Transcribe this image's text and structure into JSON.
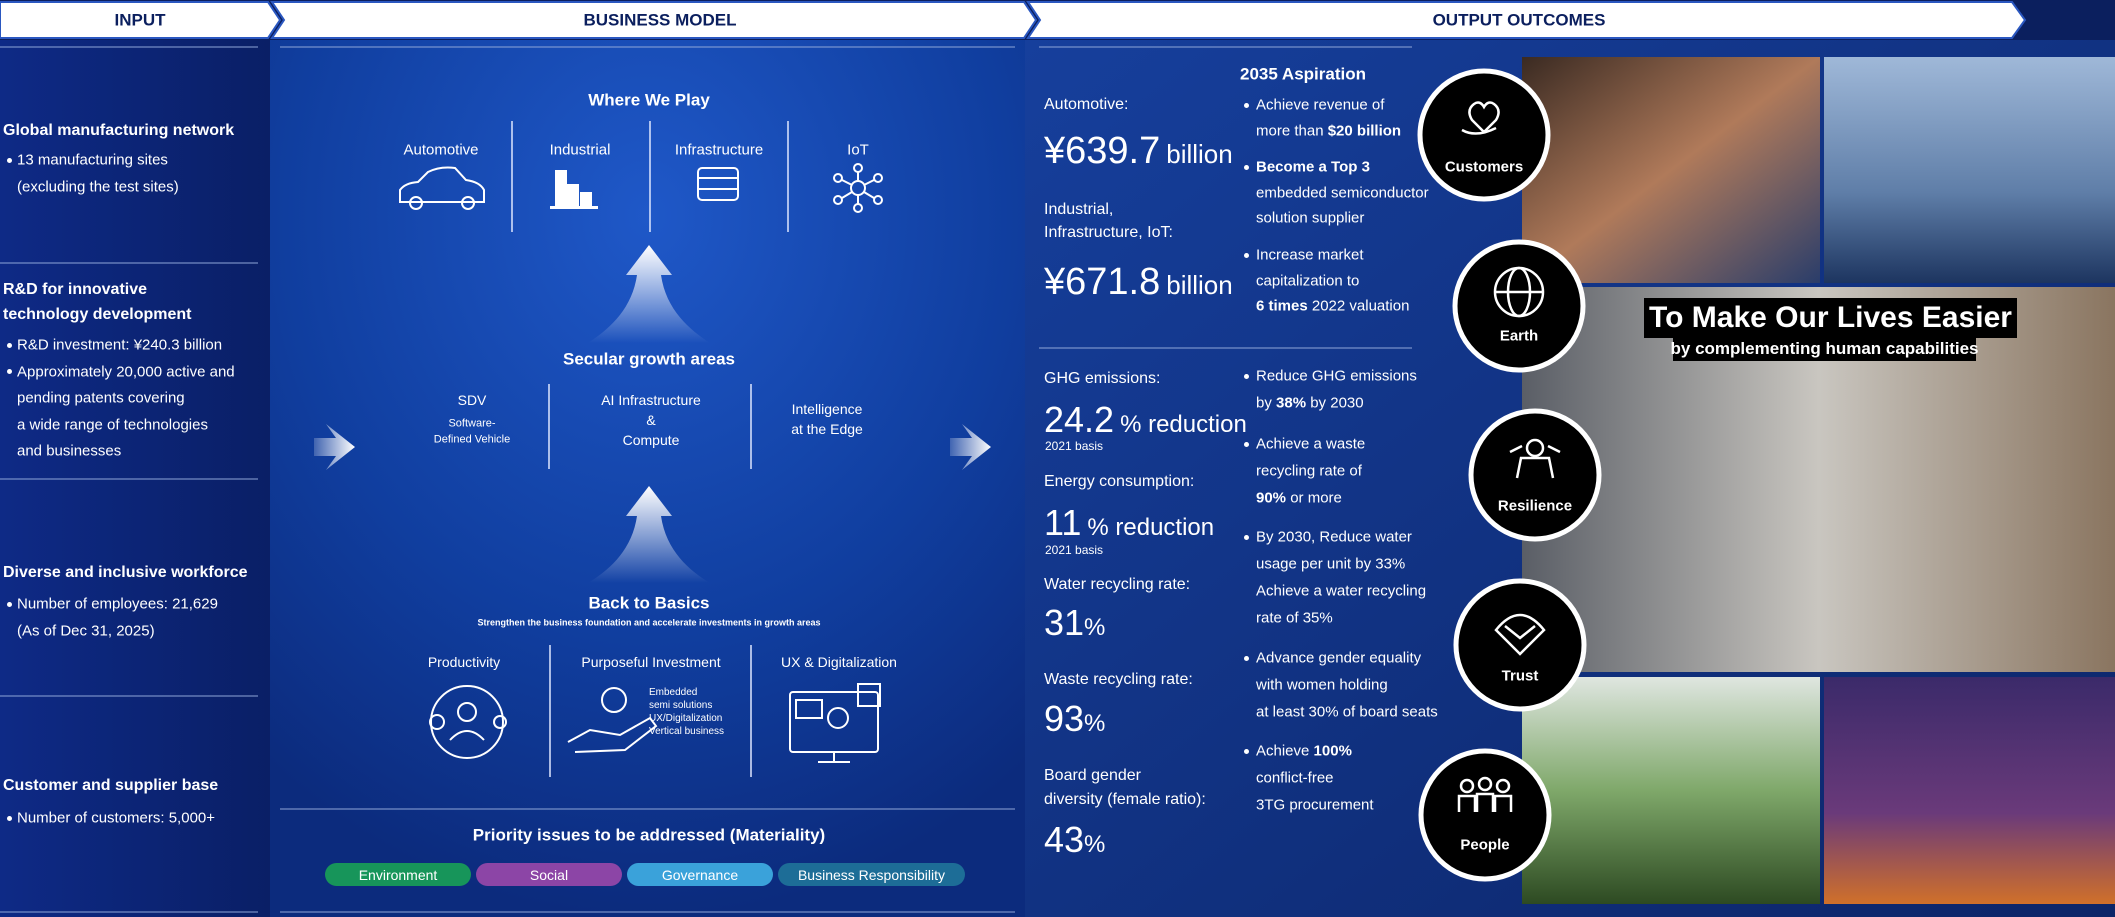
{
  "header": {
    "input": "INPUT",
    "business_model": "BUSINESS MODEL",
    "output": "OUTPUT OUTCOMES"
  },
  "inputs": [
    {
      "title": [
        "Global manufacturing network"
      ],
      "bullets": [
        [
          "13 manufacturing sites",
          "(excluding the test sites)"
        ]
      ]
    },
    {
      "title": [
        "R&D for innovative",
        "technology development"
      ],
      "bullets": [
        [
          "R&D investment: ¥240.3 billion"
        ],
        [
          "Approximately 20,000 active and",
          "pending patents covering",
          "a wide range of technologies",
          "and businesses"
        ]
      ]
    },
    {
      "title": [
        "Diverse and inclusive workforce"
      ],
      "bullets": [
        [
          "Number of employees: 21,629",
          "(As of Dec 31, 2025)"
        ]
      ]
    },
    {
      "title": [
        "Customer and supplier base"
      ],
      "bullets": [
        [
          "Number of customers: 5,000+"
        ]
      ]
    }
  ],
  "business_model": {
    "where_we_play": {
      "title": "Where We Play",
      "items": [
        "Automotive",
        "Industrial",
        "Infrastructure",
        "IoT"
      ]
    },
    "secular_growth": {
      "title": "Secular growth areas",
      "items": [
        {
          "lines": [
            "SDV"
          ],
          "sub": [
            "Software-",
            "Defined Vehicle"
          ]
        },
        {
          "lines": [
            "AI Infrastructure",
            "&",
            "Compute"
          ]
        },
        {
          "lines": [
            "Intelligence",
            "at the Edge"
          ]
        }
      ]
    },
    "back_to_basics": {
      "title": "Back to Basics",
      "subtitle": "Strengthen the business foundation and accelerate investments in growth areas",
      "items": [
        "Productivity",
        "Purposeful Investment",
        "UX & Digitalization"
      ],
      "investment_notes": [
        "Embedded",
        "semi solutions",
        "UX/Digitalization",
        "Vertical business"
      ]
    },
    "materiality": {
      "title": "Priority issues to be addressed (Materiality)",
      "tags": [
        {
          "label": "Environment",
          "color": "#17955a"
        },
        {
          "label": "Social",
          "color": "#8c45a6"
        },
        {
          "label": "Governance",
          "color": "#3aa2da"
        },
        {
          "label": "Business Responsibility",
          "color": "#1d6d97"
        }
      ]
    }
  },
  "outputs": {
    "revenue": [
      {
        "label": [
          "Automotive:"
        ],
        "value": "¥639.7",
        "unit": "billion"
      },
      {
        "label": [
          "Industrial,",
          "Infrastructure, IoT:"
        ],
        "value": "¥671.8",
        "unit": "billion"
      }
    ],
    "metrics": [
      {
        "label": [
          "GHG emissions:"
        ],
        "value": "24.2",
        "unit": "% reduction",
        "note": "2021 basis"
      },
      {
        "label": [
          "Energy consumption:"
        ],
        "value": "11",
        "unit": "% reduction",
        "note": "2021 basis"
      },
      {
        "label": [
          "Water recycling rate:"
        ],
        "value": "31",
        "unit": "%"
      },
      {
        "label": [
          "Waste recycling rate:"
        ],
        "value": "93",
        "unit": "%"
      },
      {
        "label": [
          "Board gender",
          "diversity (female ratio):"
        ],
        "value": "43",
        "unit": "%"
      }
    ],
    "aspiration": {
      "title": "2035 Aspiration",
      "bullets": [
        [
          [
            "Achieve revenue of"
          ],
          [
            "more than ",
            {
              "bold": "$20 billion"
            }
          ]
        ],
        [
          [
            {
              "bold": "Become a Top 3"
            }
          ],
          [
            "embedded semiconductor"
          ],
          [
            "solution supplier"
          ]
        ],
        [
          [
            "Increase market"
          ],
          [
            "capitalization to"
          ],
          [
            {
              "bold": "6 times"
            },
            " 2022 valuation"
          ]
        ]
      ]
    },
    "sustainability": [
      [
        [
          "Reduce GHG emissions"
        ],
        [
          "by ",
          {
            "bold": "38%"
          },
          " by 2030"
        ]
      ],
      [
        [
          "Achieve a waste"
        ],
        [
          "recycling rate of"
        ],
        [
          {
            "bold": "90%"
          },
          " or more"
        ]
      ],
      [
        [
          "By 2030, Reduce water"
        ],
        [
          "usage per unit by 33%"
        ],
        [
          "Achieve a water recycling"
        ],
        [
          "rate of 35%"
        ]
      ],
      [
        [
          "Advance gender equality"
        ],
        [
          "with women holding"
        ],
        [
          "at least 30% of board seats"
        ]
      ],
      [
        [
          "Achieve ",
          {
            "bold": "100%"
          }
        ],
        [
          "conflict-free"
        ],
        [
          "3TG procurement"
        ]
      ]
    ],
    "values": [
      "Customers",
      "Earth",
      "Resilience",
      "Trust",
      "People"
    ],
    "banner": {
      "title": "To Make Our Lives Easier",
      "subtitle": "by complementing human capabilities"
    }
  }
}
